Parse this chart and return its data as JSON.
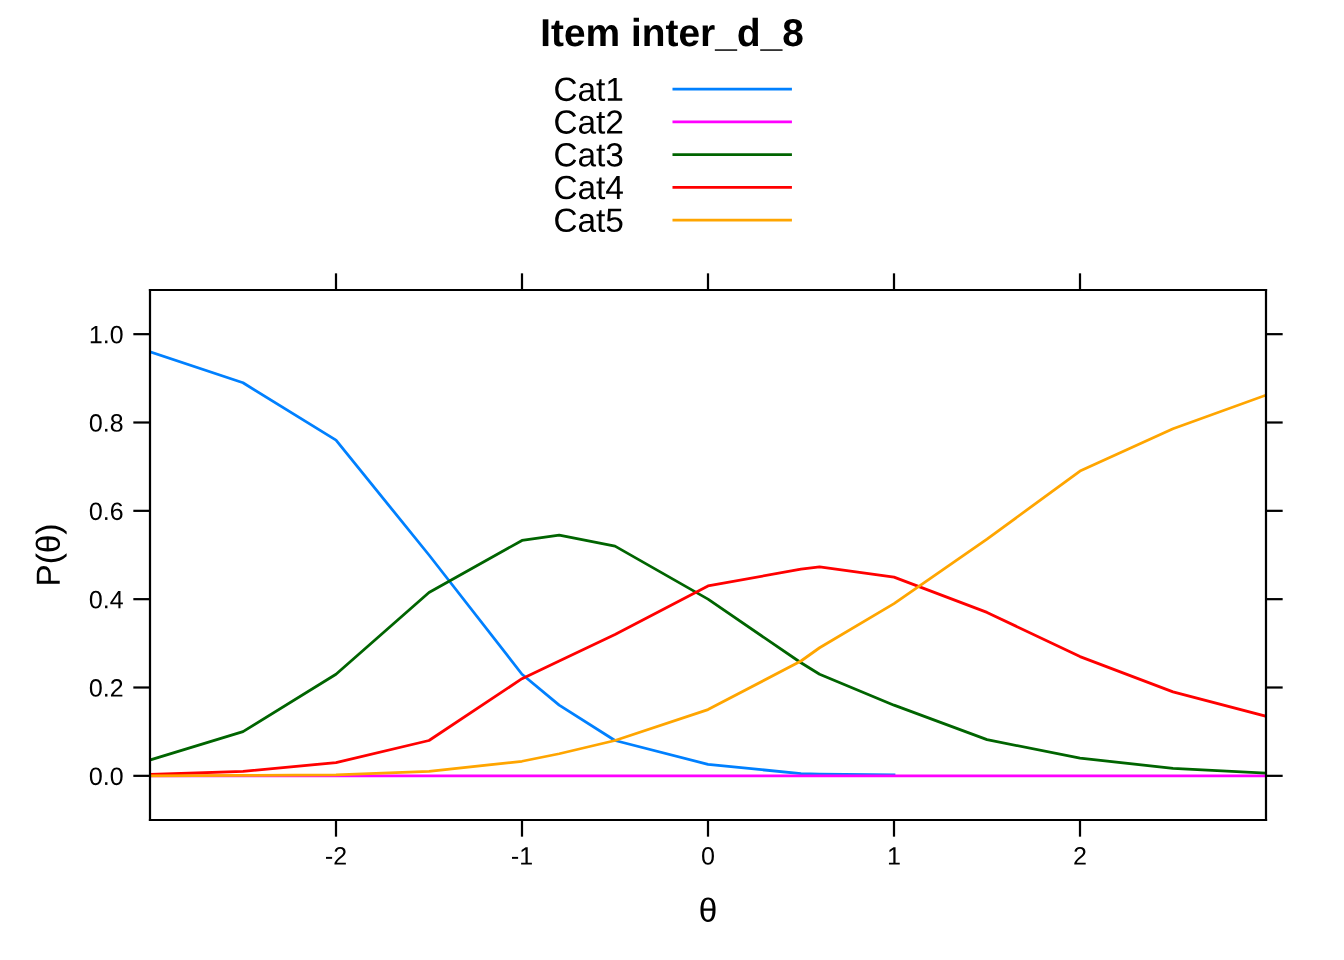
{
  "chart_data": {
    "type": "line",
    "title": "Item inter_d_8",
    "xlabel": "θ",
    "ylabel": "P(θ)",
    "x": [
      -3,
      -2.5,
      -2,
      -1.5,
      -1,
      -0.8,
      -0.5,
      0,
      0.5,
      0.6,
      1,
      1.5,
      2,
      2.5,
      3
    ],
    "series": [
      {
        "name": "Cat1",
        "color": "#0080ff",
        "values": [
          0.96,
          0.89,
          0.76,
          0.5,
          0.23,
          0.16,
          0.08,
          0.026,
          0.005,
          0.004,
          0.002,
          null,
          null,
          null,
          null
        ]
      },
      {
        "name": "Cat2",
        "color": "#ff00ff",
        "values": [
          0,
          0,
          0,
          0,
          0,
          0,
          0,
          0,
          0,
          0,
          0,
          0,
          0,
          0,
          0
        ]
      },
      {
        "name": "Cat3",
        "color": "#006400",
        "values": [
          0.036,
          0.1,
          0.23,
          0.415,
          0.533,
          0.545,
          0.52,
          0.4,
          0.256,
          0.23,
          0.16,
          0.082,
          0.04,
          0.017,
          0.006
        ]
      },
      {
        "name": "Cat4",
        "color": "#ff0000",
        "values": [
          0.003,
          0.01,
          0.03,
          0.08,
          0.22,
          0.26,
          0.32,
          0.43,
          0.468,
          0.473,
          0.45,
          0.37,
          0.27,
          0.19,
          0.135
        ]
      },
      {
        "name": "Cat5",
        "color": "#ffa500",
        "values": [
          0,
          0.001,
          0.002,
          0.01,
          0.033,
          0.05,
          0.08,
          0.15,
          0.26,
          0.29,
          0.39,
          0.536,
          0.69,
          0.786,
          0.862
        ]
      }
    ],
    "xlim": [
      -3,
      3
    ],
    "ylim": [
      -0.1,
      1.1
    ],
    "xticks": [
      -2,
      -1,
      0,
      1,
      2
    ],
    "yticks": [
      {
        "value": 0,
        "label": "0.0"
      },
      0.2,
      0.4,
      0.6,
      0.8,
      {
        "value": 1,
        "label": "1.0"
      }
    ],
    "grid": false,
    "legend": "top",
    "line_style": "solid",
    "marker": "none"
  }
}
